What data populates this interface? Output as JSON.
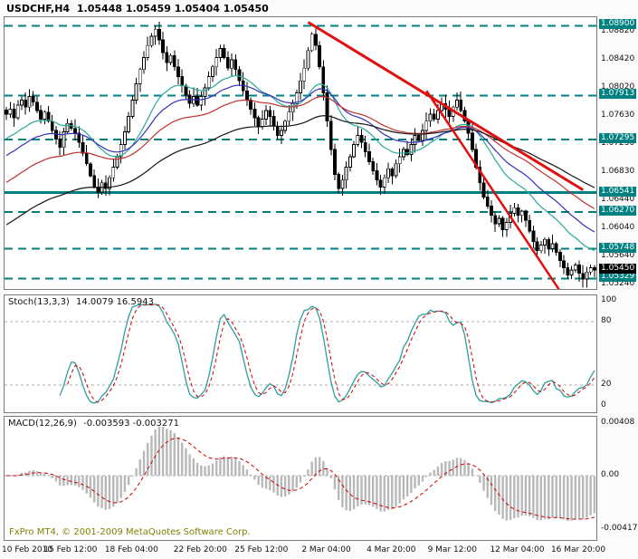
{
  "header": {
    "symbol": "USDCHF,H4",
    "quote": "1.05448 1.05459 1.05404 1.05450"
  },
  "panels": {
    "stoch": {
      "label": "Stoch(13,3,3)",
      "values": "14.0079 16.5943"
    },
    "macd": {
      "label": "MACD(12,26,9)",
      "values": "-0.003593 -0.003271"
    }
  },
  "footer": {
    "copyright": "FxPro MT4, © 2001-2009 MetaQuotes Software Corp."
  },
  "price_scale": {
    "ticks": [
      "1.08820",
      "1.08420",
      "1.08020",
      "1.07630",
      "1.07230",
      "1.06830",
      "1.06440",
      "1.06040",
      "1.05640",
      "1.05240"
    ],
    "current": "1.05450"
  },
  "time_axis": [
    {
      "i": 0,
      "label": "10 Feb 2010"
    },
    {
      "i": 17,
      "label": "15 Feb 12:00"
    },
    {
      "i": 33,
      "label": "18 Feb 04:00"
    },
    {
      "i": 51,
      "label": "22 Feb 20:00"
    },
    {
      "i": 67,
      "label": "25 Feb 12:00"
    },
    {
      "i": 84,
      "label": "2 Mar 04:00"
    },
    {
      "i": 101,
      "label": "4 Mar 20:00"
    },
    {
      "i": 117,
      "label": "9 Mar 12:00"
    },
    {
      "i": 134,
      "label": "12 Mar 04:00"
    },
    {
      "i": 150,
      "label": "16 Mar 20:00"
    }
  ],
  "colors": {
    "level_teal": "#008080",
    "trend_red": "#e01010",
    "histogram_gray": "#b8b8b8",
    "stoch_main": "#2e9e9e",
    "signal_red": "#cc0000",
    "candle_outline": "#000000",
    "bull_fill": "#ffffff",
    "bear_fill": "#000000",
    "grid_silver": "#ababab"
  },
  "chart_data": [
    {
      "type": "candlestick",
      "title": "USDCHF,H4",
      "x_range": "10 Feb 2010 - 16 Mar 2010, H4 bars",
      "ylim": [
        1.0518,
        1.0902
      ],
      "closes": [
        1.0765,
        1.0772,
        1.076,
        1.0778,
        1.0785,
        1.0775,
        1.079,
        1.0782,
        1.077,
        1.0758,
        1.0768,
        1.0755,
        1.0742,
        1.073,
        1.0718,
        1.074,
        1.0752,
        1.0745,
        1.0738,
        1.0725,
        1.071,
        1.0695,
        1.0678,
        1.0662,
        1.0655,
        1.0668,
        1.066,
        1.0675,
        1.069,
        1.0705,
        1.0722,
        1.074,
        1.0762,
        1.0785,
        1.0808,
        1.0828,
        1.0845,
        1.0862,
        1.0875,
        1.0885,
        1.087,
        1.0852,
        1.0838,
        1.0848,
        1.0832,
        1.0818,
        1.0805,
        1.0792,
        1.078,
        1.079,
        1.0778,
        1.079,
        1.0802,
        1.0818,
        1.0832,
        1.0845,
        1.0858,
        1.0845,
        1.083,
        1.0842,
        1.0828,
        1.0812,
        1.0798,
        1.0785,
        1.0772,
        1.076,
        1.0748,
        1.0758,
        1.077,
        1.0762,
        1.0748,
        1.0735,
        1.0742,
        1.0755,
        1.0768,
        1.078,
        1.0795,
        1.0812,
        1.083,
        1.0855,
        1.0878,
        1.0862,
        1.0832,
        1.0795,
        1.0755,
        1.0715,
        1.068,
        1.066,
        1.0672,
        1.069,
        1.0705,
        1.0722,
        1.0735,
        1.0725,
        1.0712,
        1.0698,
        1.0685,
        1.0672,
        1.0662,
        1.0675,
        1.0688,
        1.0678,
        1.0695,
        1.0705,
        1.0715,
        1.0708,
        1.0722,
        1.0735,
        1.0728,
        1.0742,
        1.0755,
        1.0765,
        1.0758,
        1.077,
        1.078,
        1.0772,
        1.0762,
        1.0775,
        1.0785,
        1.077,
        1.0755,
        1.0738,
        1.0715,
        1.069,
        1.0668,
        1.0648,
        1.0635,
        1.0622,
        1.061,
        1.0618,
        1.0602,
        1.0612,
        1.0625,
        1.0633,
        1.0622,
        1.0628,
        1.0615,
        1.06,
        1.0585,
        1.0572,
        1.058,
        1.0588,
        1.0575,
        1.0582,
        1.057,
        1.0558,
        1.0548,
        1.0538,
        1.0545,
        1.0552,
        1.054,
        1.0532,
        1.0542,
        1.0548,
        1.0545
      ],
      "level_lines": [
        {
          "price": 1.089,
          "label": "1.08900",
          "style": "dashed"
        },
        {
          "price": 1.07913,
          "label": "1.07913",
          "style": "dashed"
        },
        {
          "price": 1.07295,
          "label": "1.07295",
          "style": "dashed"
        },
        {
          "price": 1.06541,
          "label": "1.06541",
          "style": "solid"
        },
        {
          "price": 1.0627,
          "label": "1.06270",
          "style": "dashed"
        },
        {
          "price": 1.05748,
          "label": "1.05748",
          "style": "dashed"
        },
        {
          "price": 1.05329,
          "label": "1.05329",
          "style": "dashed"
        }
      ],
      "current_price": {
        "value": 1.0545,
        "label": "1.05450"
      },
      "trend_lines": [
        {
          "from": [
            79,
            1.0895
          ],
          "to": [
            151,
            1.0658
          ],
          "width": 3
        },
        {
          "from": [
            110,
            1.0798
          ],
          "to": [
            145,
            1.0515
          ],
          "width": 2.5
        }
      ],
      "moving_averages": [
        {
          "period": 21,
          "color": "#2aa79b",
          "seed_drop": 0.0038
        },
        {
          "period": 34,
          "color": "#3333b8",
          "seed_drop": 0.0062
        },
        {
          "period": 55,
          "color": "#c03030",
          "seed_drop": 0.01
        },
        {
          "period": 89,
          "color": "#151515",
          "seed_drop": 0.016
        }
      ]
    },
    {
      "type": "line",
      "title": "Stoch(13,3,3)",
      "readout": "14.0079 16.5943",
      "params": {
        "k_period": 13,
        "d_period": 3,
        "slowing": 3
      },
      "ylim": [
        0,
        100
      ],
      "ticks": [
        100,
        80,
        20,
        0
      ],
      "levels": [
        80,
        20
      ]
    },
    {
      "type": "histogram+line",
      "title": "MACD(12,26,9)",
      "readout": "-0.003593 -0.003271",
      "params": {
        "fast_ema": 12,
        "slow_ema": 26,
        "signal": 9
      },
      "ylim": [
        -0.005,
        0.0046
      ],
      "ticks": [
        {
          "text": "0.00408",
          "v": 0.00408
        },
        {
          "text": "0.00",
          "v": 0
        },
        {
          "text": "-0.00417",
          "v": -0.00417
        }
      ]
    }
  ]
}
